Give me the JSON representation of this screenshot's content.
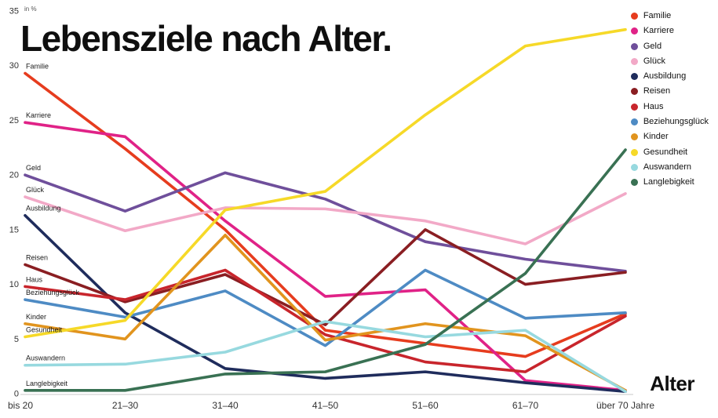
{
  "title": "Lebensziele nach Alter.",
  "unit_label": "in %",
  "x_axis_title": "Alter",
  "chart_data": {
    "type": "line",
    "title": "Lebensziele nach Alter.",
    "ylabel": "in %",
    "xlabel": "Alter",
    "ylim": [
      0,
      35
    ],
    "yticks": [
      0,
      5,
      10,
      15,
      20,
      25,
      30,
      35
    ],
    "grid": false,
    "legend_position": "top-right",
    "categories": [
      "bis 20",
      "21–30",
      "31–40",
      "41–50",
      "51–60",
      "61–70",
      "über 70 Jahre"
    ],
    "series": [
      {
        "name": "Familie",
        "color": "#e63c1e",
        "values": [
          29.3,
          22.4,
          15.0,
          5.8,
          4.6,
          3.4,
          7.3
        ]
      },
      {
        "name": "Karriere",
        "color": "#e02287",
        "values": [
          24.8,
          23.5,
          15.8,
          8.9,
          9.5,
          1.2,
          0.3
        ]
      },
      {
        "name": "Geld",
        "color": "#6f4f9b",
        "values": [
          20.0,
          16.7,
          20.2,
          17.8,
          13.9,
          12.3,
          11.2
        ]
      },
      {
        "name": "Glück",
        "color": "#f2a9c7",
        "values": [
          18.0,
          14.9,
          17.0,
          16.9,
          15.8,
          13.7,
          18.3
        ]
      },
      {
        "name": "Ausbildung",
        "color": "#1f2c5c",
        "values": [
          16.3,
          7.4,
          2.3,
          1.4,
          2.0,
          1.0,
          0.2
        ]
      },
      {
        "name": "Reisen",
        "color": "#8a1e22",
        "values": [
          11.8,
          8.4,
          10.9,
          6.3,
          15.0,
          10.0,
          11.1
        ]
      },
      {
        "name": "Haus",
        "color": "#c8252c",
        "values": [
          9.8,
          8.6,
          11.3,
          5.4,
          2.9,
          2.0,
          7.1
        ]
      },
      {
        "name": "Beziehungsglück",
        "color": "#4e8bc4",
        "values": [
          8.6,
          7.0,
          9.4,
          4.4,
          11.3,
          6.9,
          7.4
        ]
      },
      {
        "name": "Kinder",
        "color": "#e1941e",
        "values": [
          6.4,
          5.0,
          14.5,
          4.9,
          6.4,
          5.3,
          0.3
        ]
      },
      {
        "name": "Gesundheit",
        "color": "#f6d928",
        "values": [
          5.2,
          6.7,
          16.8,
          18.5,
          25.5,
          31.8,
          33.3
        ]
      },
      {
        "name": "Auswandern",
        "color": "#97d9df",
        "values": [
          2.6,
          2.7,
          3.8,
          6.6,
          5.2,
          5.8,
          0.2
        ]
      },
      {
        "name": "Langlebigkeit",
        "color": "#397153",
        "values": [
          0.3,
          0.3,
          1.8,
          2.0,
          4.5,
          11.0,
          22.3
        ]
      }
    ]
  }
}
